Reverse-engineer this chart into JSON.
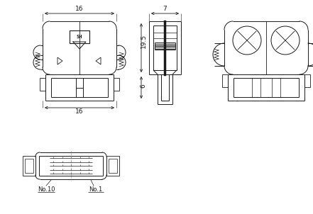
{
  "bg_color": "#ffffff",
  "line_color": "#1a1a1a",
  "dim_color": "#000000",
  "figsize": [
    4.41,
    3.02
  ],
  "dpi": 100,
  "dimensions": {
    "top_width": "16",
    "side_height": "19.5",
    "bottom_height": "6",
    "bottom_width": "16",
    "side_width": "7"
  },
  "labels": {
    "no10": "No.10",
    "no1": "No.1"
  }
}
